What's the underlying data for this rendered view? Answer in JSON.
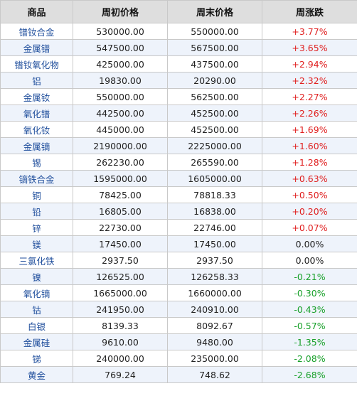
{
  "table": {
    "headers": [
      "商品",
      "周初价格",
      "周末价格",
      "周涨跌"
    ],
    "colors": {
      "up": "#e02020",
      "down": "#18a02a",
      "name": "#1f4e9c",
      "header_bg": "#dedede"
    },
    "rows": [
      {
        "name": "镨钕合金",
        "open": "530000.00",
        "close": "550000.00",
        "change": "+3.77%"
      },
      {
        "name": "金属镨",
        "open": "547500.00",
        "close": "567500.00",
        "change": "+3.65%"
      },
      {
        "name": "镨钕氧化物",
        "open": "425000.00",
        "close": "437500.00",
        "change": "+2.94%"
      },
      {
        "name": "铝",
        "open": "19830.00",
        "close": "20290.00",
        "change": "+2.32%"
      },
      {
        "name": "金属钕",
        "open": "550000.00",
        "close": "562500.00",
        "change": "+2.27%"
      },
      {
        "name": "氧化镨",
        "open": "442500.00",
        "close": "452500.00",
        "change": "+2.26%"
      },
      {
        "name": "氧化钕",
        "open": "445000.00",
        "close": "452500.00",
        "change": "+1.69%"
      },
      {
        "name": "金属镝",
        "open": "2190000.00",
        "close": "2225000.00",
        "change": "+1.60%"
      },
      {
        "name": "锡",
        "open": "262230.00",
        "close": "265590.00",
        "change": "+1.28%"
      },
      {
        "name": "镝铁合金",
        "open": "1595000.00",
        "close": "1605000.00",
        "change": "+0.63%"
      },
      {
        "name": "铜",
        "open": "78425.00",
        "close": "78818.33",
        "change": "+0.50%"
      },
      {
        "name": "铅",
        "open": "16805.00",
        "close": "16838.00",
        "change": "+0.20%"
      },
      {
        "name": "锌",
        "open": "22730.00",
        "close": "22746.00",
        "change": "+0.07%"
      },
      {
        "name": "镁",
        "open": "17450.00",
        "close": "17450.00",
        "change": "0.00%"
      },
      {
        "name": "三氯化铁",
        "open": "2937.50",
        "close": "2937.50",
        "change": "0.00%"
      },
      {
        "name": "镍",
        "open": "126525.00",
        "close": "126258.33",
        "change": "-0.21%"
      },
      {
        "name": "氧化镝",
        "open": "1665000.00",
        "close": "1660000.00",
        "change": "-0.30%"
      },
      {
        "name": "钴",
        "open": "241950.00",
        "close": "240910.00",
        "change": "-0.43%"
      },
      {
        "name": "白银",
        "open": "8139.33",
        "close": "8092.67",
        "change": "-0.57%"
      },
      {
        "name": "金属硅",
        "open": "9610.00",
        "close": "9480.00",
        "change": "-1.35%"
      },
      {
        "name": "锑",
        "open": "240000.00",
        "close": "235000.00",
        "change": "-2.08%"
      },
      {
        "name": "黄金",
        "open": "769.24",
        "close": "748.62",
        "change": "-2.68%"
      }
    ]
  }
}
